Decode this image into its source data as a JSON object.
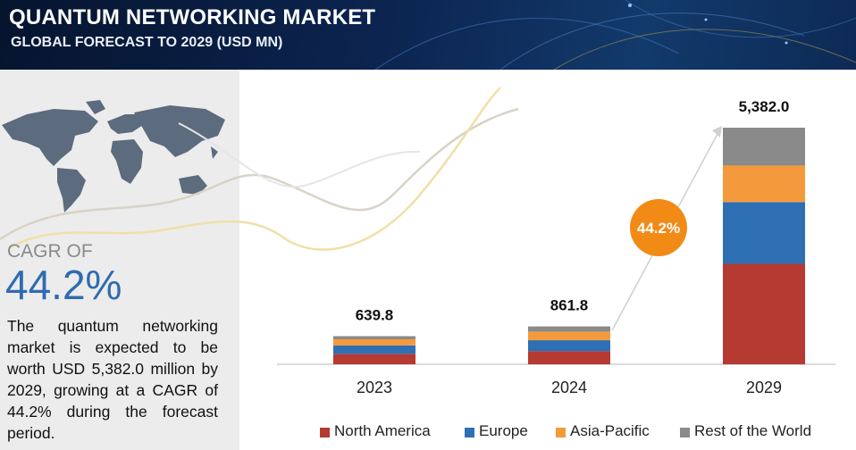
{
  "header": {
    "title": "QUANTUM NETWORKING MARKET",
    "subtitle": "GLOBAL FORECAST TO 2029 (USD MN)"
  },
  "summary": {
    "cagr_label": "CAGR OF",
    "cagr_value": "44.2%",
    "description": "The quantum networking market is expected to be worth USD 5,382.0 million by 2029, growing at a CAGR of 44.2% during the forecast period."
  },
  "colors": {
    "north_america": "#b53a32",
    "europe": "#2f6fb4",
    "asia_pacific": "#f59a3c",
    "rest_of_world": "#8a8a8a",
    "cagr_bubble": "#f28a16",
    "accent_blue": "#2f6bb0"
  },
  "chart_data": {
    "type": "bar",
    "stacked": true,
    "categories": [
      "2023",
      "2024",
      "2029"
    ],
    "series": [
      {
        "name": "North America",
        "values": [
          237,
          297,
          2285
        ]
      },
      {
        "name": "Europe",
        "values": [
          192,
          250,
          1405
        ]
      },
      {
        "name": "Asia-Pacific",
        "values": [
          140,
          196,
          830
        ]
      },
      {
        "name": "Rest of the World",
        "values": [
          70.8,
          118.8,
          862
        ]
      }
    ],
    "totals": [
      "639.8",
      "861.8",
      "5,382.0"
    ],
    "annotation": "44.2%",
    "legend_position": "bottom",
    "grid": false,
    "ylim": [
      0,
      5382
    ]
  }
}
